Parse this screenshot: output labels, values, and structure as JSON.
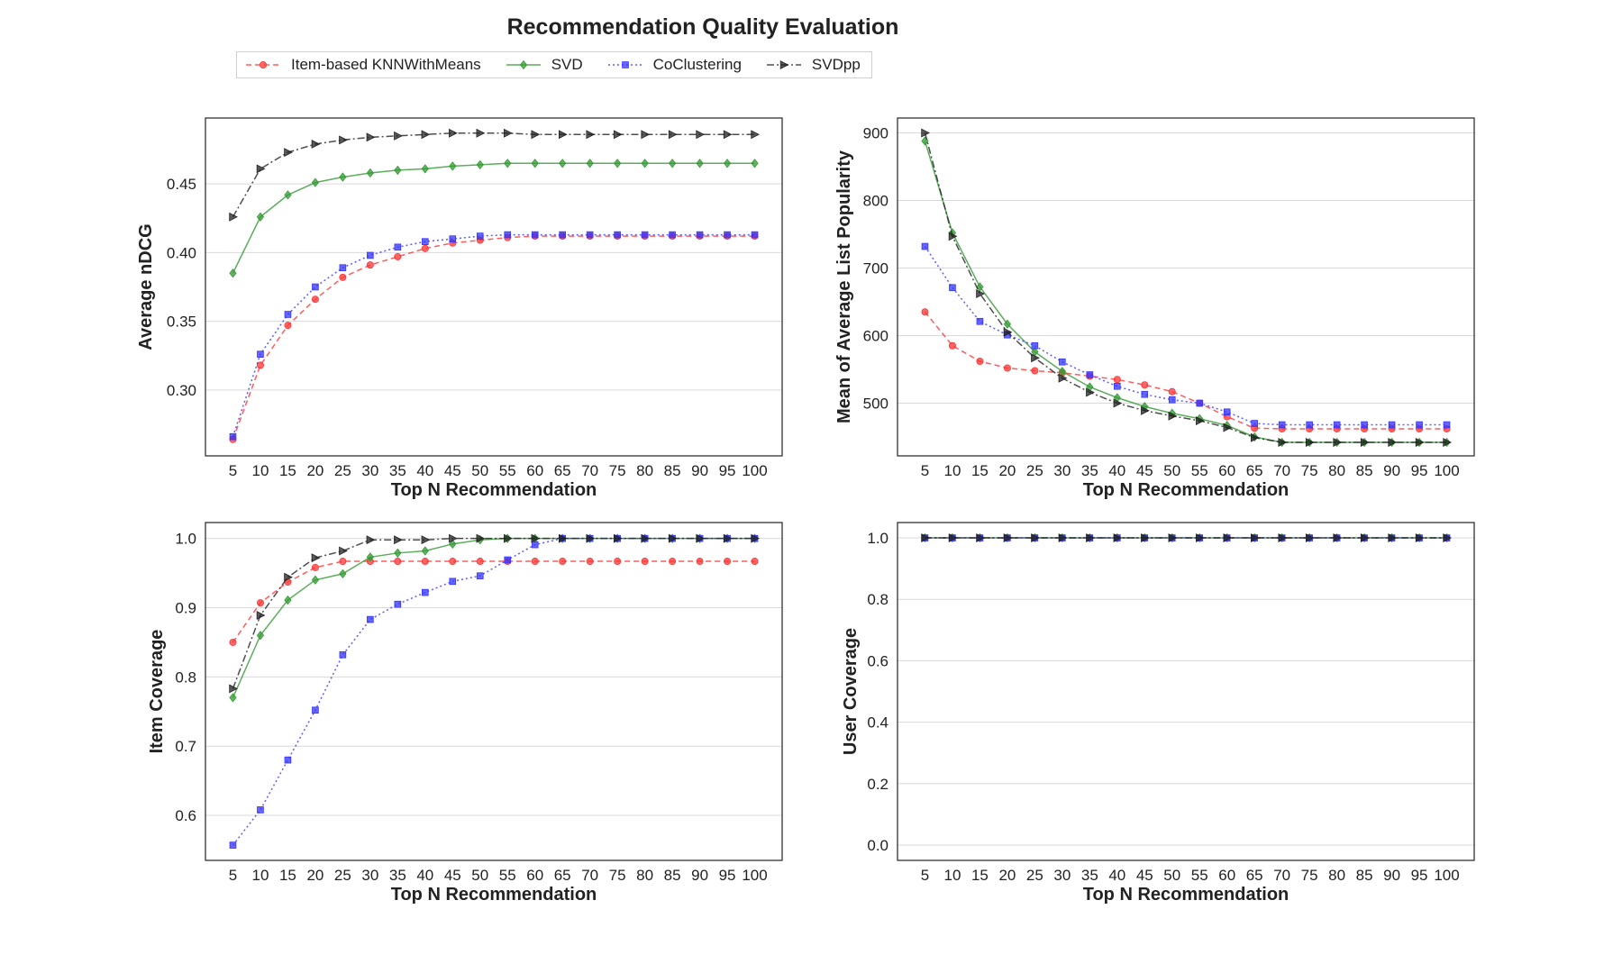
{
  "figure": {
    "title": "Recommendation Quality Evaluation"
  },
  "legend": [
    {
      "name": "Item-based KNNWithMeans",
      "color": "#ff3333",
      "dash": "6,4",
      "marker": "circle"
    },
    {
      "name": "SVD",
      "color": "#339933",
      "dash": "",
      "marker": "diamond"
    },
    {
      "name": "CoClustering",
      "color": "#3333ff",
      "dash": "2,3",
      "marker": "square"
    },
    {
      "name": "SVDpp",
      "color": "#222222",
      "dash": "8,3,2,3",
      "marker": "triangle-right"
    }
  ],
  "chart_data": [
    {
      "type": "line",
      "panel": "top-left",
      "xlabel": "Top N Recommendation",
      "ylabel": "Average nDCG",
      "x": [
        5,
        10,
        15,
        20,
        25,
        30,
        35,
        40,
        45,
        50,
        55,
        60,
        65,
        70,
        75,
        80,
        85,
        90,
        95,
        100
      ],
      "ylim": [
        0.252,
        0.498
      ],
      "yticks": [
        "0.30",
        "0.35",
        "0.40",
        "0.45"
      ],
      "grid": "horizontal",
      "series": [
        {
          "name": "Item-based KNNWithMeans",
          "values": [
            0.264,
            0.318,
            0.347,
            0.366,
            0.382,
            0.391,
            0.397,
            0.403,
            0.407,
            0.409,
            0.411,
            0.412,
            0.412,
            0.412,
            0.412,
            0.412,
            0.412,
            0.412,
            0.412,
            0.412
          ]
        },
        {
          "name": "SVD",
          "values": [
            0.385,
            0.426,
            0.442,
            0.451,
            0.455,
            0.458,
            0.46,
            0.461,
            0.463,
            0.464,
            0.465,
            0.465,
            0.465,
            0.465,
            0.465,
            0.465,
            0.465,
            0.465,
            0.465,
            0.465
          ]
        },
        {
          "name": "CoClustering",
          "values": [
            0.266,
            0.326,
            0.355,
            0.375,
            0.389,
            0.398,
            0.404,
            0.408,
            0.41,
            0.412,
            0.413,
            0.413,
            0.413,
            0.413,
            0.413,
            0.413,
            0.413,
            0.413,
            0.413,
            0.413
          ]
        },
        {
          "name": "SVDpp",
          "values": [
            0.426,
            0.461,
            0.473,
            0.479,
            0.482,
            0.484,
            0.485,
            0.486,
            0.487,
            0.487,
            0.487,
            0.486,
            0.486,
            0.486,
            0.486,
            0.486,
            0.486,
            0.486,
            0.486,
            0.486
          ]
        }
      ]
    },
    {
      "type": "line",
      "panel": "top-right",
      "xlabel": "Top N Recommendation",
      "ylabel": "Mean of Average List Popularity",
      "x": [
        5,
        10,
        15,
        20,
        25,
        30,
        35,
        40,
        45,
        50,
        55,
        60,
        65,
        70,
        75,
        80,
        85,
        90,
        95,
        100
      ],
      "ylim": [
        422,
        922
      ],
      "yticks": [
        "500",
        "600",
        "700",
        "800",
        "900"
      ],
      "grid": "horizontal",
      "series": [
        {
          "name": "Item-based KNNWithMeans",
          "values": [
            635,
            585,
            562,
            552,
            548,
            545,
            540,
            535,
            527,
            517,
            500,
            480,
            463,
            462,
            462,
            462,
            462,
            462,
            462,
            462
          ]
        },
        {
          "name": "SVD",
          "values": [
            888,
            752,
            672,
            617,
            576,
            547,
            524,
            508,
            495,
            485,
            477,
            467,
            450,
            442,
            442,
            442,
            442,
            442,
            442,
            442
          ]
        },
        {
          "name": "CoClustering",
          "values": [
            732,
            671,
            621,
            601,
            585,
            561,
            542,
            525,
            513,
            505,
            500,
            487,
            470,
            468,
            468,
            468,
            468,
            468,
            468,
            468
          ]
        },
        {
          "name": "SVDpp",
          "values": [
            900,
            747,
            662,
            605,
            567,
            537,
            516,
            500,
            489,
            481,
            474,
            464,
            449,
            442,
            442,
            442,
            442,
            442,
            442,
            442
          ]
        }
      ]
    },
    {
      "type": "line",
      "panel": "bottom-left",
      "xlabel": "Top N Recommendation",
      "ylabel": "Item Coverage",
      "x": [
        5,
        10,
        15,
        20,
        25,
        30,
        35,
        40,
        45,
        50,
        55,
        60,
        65,
        70,
        75,
        80,
        85,
        90,
        95,
        100
      ],
      "ylim": [
        0.535,
        1.023
      ],
      "yticks": [
        "0.6",
        "0.7",
        "0.8",
        "0.9",
        "1.0"
      ],
      "grid": "horizontal",
      "series": [
        {
          "name": "Item-based KNNWithMeans",
          "values": [
            0.85,
            0.907,
            0.937,
            0.958,
            0.967,
            0.967,
            0.967,
            0.967,
            0.967,
            0.967,
            0.967,
            0.967,
            0.967,
            0.967,
            0.967,
            0.967,
            0.967,
            0.967,
            0.967,
            0.967
          ]
        },
        {
          "name": "SVD",
          "values": [
            0.77,
            0.86,
            0.911,
            0.94,
            0.949,
            0.973,
            0.979,
            0.982,
            0.992,
            0.998,
            1.0,
            1.0,
            1.0,
            1.0,
            1.0,
            1.0,
            1.0,
            1.0,
            1.0,
            1.0
          ]
        },
        {
          "name": "CoClustering",
          "values": [
            0.557,
            0.608,
            0.68,
            0.752,
            0.832,
            0.883,
            0.905,
            0.922,
            0.938,
            0.946,
            0.969,
            0.991,
            1.0,
            1.0,
            1.0,
            1.0,
            1.0,
            1.0,
            1.0,
            1.0
          ]
        },
        {
          "name": "SVDpp",
          "values": [
            0.783,
            0.889,
            0.944,
            0.972,
            0.982,
            0.998,
            0.998,
            0.998,
            1.0,
            1.0,
            1.0,
            1.0,
            1.0,
            1.0,
            1.0,
            1.0,
            1.0,
            1.0,
            1.0,
            1.0
          ]
        }
      ]
    },
    {
      "type": "line",
      "panel": "bottom-right",
      "xlabel": "Top N Recommendation",
      "ylabel": "User Coverage",
      "x": [
        5,
        10,
        15,
        20,
        25,
        30,
        35,
        40,
        45,
        50,
        55,
        60,
        65,
        70,
        75,
        80,
        85,
        90,
        95,
        100
      ],
      "ylim": [
        -0.05,
        1.05
      ],
      "yticks": [
        "0.0",
        "0.2",
        "0.4",
        "0.6",
        "0.8",
        "1.0"
      ],
      "grid": "horizontal",
      "series": [
        {
          "name": "Item-based KNNWithMeans",
          "values": [
            1.0,
            1.0,
            1.0,
            1.0,
            1.0,
            1.0,
            1.0,
            1.0,
            1.0,
            1.0,
            1.0,
            1.0,
            1.0,
            1.0,
            1.0,
            1.0,
            1.0,
            1.0,
            1.0,
            1.0
          ]
        },
        {
          "name": "SVD",
          "values": [
            1.0,
            1.0,
            1.0,
            1.0,
            1.0,
            1.0,
            1.0,
            1.0,
            1.0,
            1.0,
            1.0,
            1.0,
            1.0,
            1.0,
            1.0,
            1.0,
            1.0,
            1.0,
            1.0,
            1.0
          ]
        },
        {
          "name": "CoClustering",
          "values": [
            1.0,
            1.0,
            1.0,
            1.0,
            1.0,
            1.0,
            1.0,
            1.0,
            1.0,
            1.0,
            1.0,
            1.0,
            1.0,
            1.0,
            1.0,
            1.0,
            1.0,
            1.0,
            1.0,
            1.0
          ]
        },
        {
          "name": "SVDpp",
          "values": [
            1.0,
            1.0,
            1.0,
            1.0,
            1.0,
            1.0,
            1.0,
            1.0,
            1.0,
            1.0,
            1.0,
            1.0,
            1.0,
            1.0,
            1.0,
            1.0,
            1.0,
            1.0,
            1.0,
            1.0
          ]
        }
      ]
    }
  ]
}
